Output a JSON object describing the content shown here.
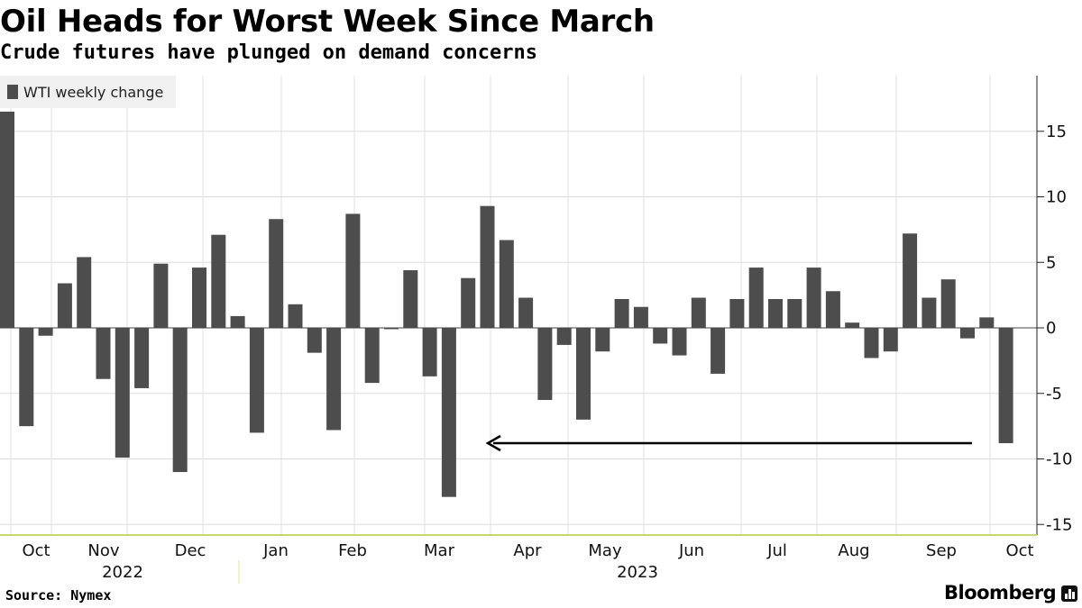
{
  "header": {
    "title": "Oil Heads for Worst Week Since March",
    "subtitle": "Crude futures have plunged on demand concerns"
  },
  "footer": {
    "source": "Source: Nymex",
    "brand": "Bloomberg",
    "brand_icon": "bloomberg-bars-icon"
  },
  "chart_data": {
    "type": "bar",
    "series": [
      {
        "name": "WTI weekly change",
        "color": "#4d4d4d",
        "values": [
          16.5,
          -7.5,
          -0.6,
          3.4,
          5.4,
          -3.9,
          -9.9,
          -4.6,
          4.9,
          -11.0,
          4.6,
          7.1,
          0.9,
          -8.0,
          8.3,
          1.8,
          -1.9,
          -7.8,
          8.7,
          -4.2,
          -0.1,
          4.4,
          -3.7,
          -12.9,
          3.8,
          9.3,
          6.7,
          2.3,
          -5.5,
          -1.3,
          -7.0,
          -1.8,
          2.2,
          1.6,
          -1.2,
          -2.1,
          2.3,
          -3.5,
          2.2,
          4.6,
          2.2,
          2.2,
          4.6,
          2.8,
          0.4,
          -2.3,
          -1.8,
          7.2,
          2.3,
          3.7,
          -0.8,
          0.8,
          -8.8
        ]
      }
    ],
    "ylim": [
      -15.9,
      19.2
    ],
    "yticks": [
      15,
      10,
      5,
      0,
      -5,
      -10,
      -15
    ],
    "x_month_labels": [
      "Oct",
      "Nov",
      "Dec",
      "Jan",
      "Feb",
      "Mar",
      "Apr",
      "May",
      "Jun",
      "Jul",
      "Aug",
      "Sep",
      "Oct"
    ],
    "x_year_labels": [
      "2022",
      "2023"
    ],
    "grid": true,
    "legend_position": "top-left",
    "annotation": {
      "type": "arrow",
      "direction": "left",
      "from_week": 50,
      "to_week": 25,
      "y": -8.7
    }
  }
}
